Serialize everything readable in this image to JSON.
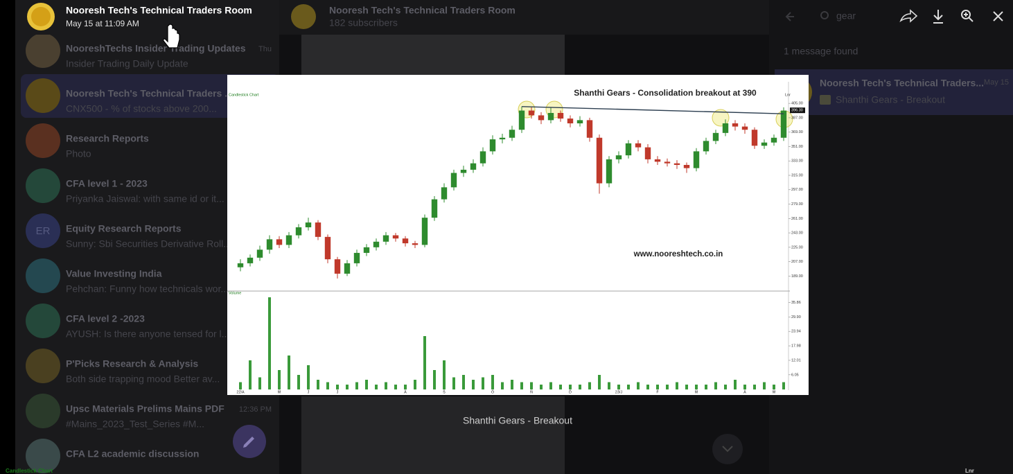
{
  "viewer": {
    "title": "Nooresh Tech's Technical Traders Room",
    "date": "May 15 at 11:09 AM",
    "caption": "Shanthi Gears - Breakout"
  },
  "chat_list": [
    {
      "name": "NooreshTechs Insider Trading Updates",
      "preview": "Insider Trading Daily Update",
      "time": "Thu"
    },
    {
      "name": "Nooresh Tech's Technical Traders ...",
      "preview": "CNX500 - % of stocks above 200...",
      "selected": true
    },
    {
      "name": "Research Reports",
      "preview": "Photo"
    },
    {
      "name": "CFA level 1 - 2023",
      "preview": "Priyanka Jaiswal: with same id or it..."
    },
    {
      "name": "Equity Research Reports",
      "preview": "Sunny: Sbi Securities Derivative Roll...",
      "initials": "ER"
    },
    {
      "name": "Value Investing India",
      "preview": "Pehchan: Funny how technicals wor..."
    },
    {
      "name": "CFA level 2 -2023",
      "preview": "AYUSH: Is there anyone tensed for l..."
    },
    {
      "name": "P'Picks Research & Analysis",
      "preview": "Both side trapping mood Better av..."
    },
    {
      "name": "Upsc Materials Prelims Mains PDF",
      "preview": "#Mains_2023_Test_Series #M...",
      "time": "12:36 PM"
    },
    {
      "name": "CFA L2 academic discussion",
      "preview": ""
    }
  ],
  "chat_header": {
    "title": "Nooresh Tech's Technical Traders Room",
    "subtitle": "182 subscribers"
  },
  "search": {
    "query": "gear",
    "status": "1 message found",
    "result": {
      "name": "Nooresh Tech's Technical Traders...",
      "date": "May 15",
      "preview": "Shanthi Gears - Breakout"
    }
  },
  "chart_data": {
    "type": "candlestick",
    "label": "Candlestick Chart",
    "title": "Shanthi Gears - Consolidation breakout at 390",
    "annotation": "www.nooreshtech.co.in",
    "scale_label": "Lnr",
    "up_color": "#2e8b2e",
    "down_color": "#c0392b",
    "xlim": [
      -0.5,
      56.5
    ],
    "xticks": [
      {
        "value": 0,
        "label": "22/A"
      },
      {
        "value": 4,
        "label": "M"
      },
      {
        "value": 7,
        "label": "J"
      },
      {
        "value": 10,
        "label": "J"
      },
      {
        "value": 17,
        "label": "A"
      },
      {
        "value": 21,
        "label": "S"
      },
      {
        "value": 26,
        "label": "O"
      },
      {
        "value": 30,
        "label": "N"
      },
      {
        "value": 34,
        "label": "D"
      },
      {
        "value": 39,
        "label": "23/J"
      },
      {
        "value": 43,
        "label": "F"
      },
      {
        "value": 47,
        "label": "M"
      },
      {
        "value": 52,
        "label": "A"
      },
      {
        "value": 55,
        "label": "M"
      }
    ],
    "ylim": [
      172,
      432
    ],
    "yticks": [
      {
        "value": 405,
        "label": "405.00"
      },
      {
        "value": 387,
        "label": "387.00"
      },
      {
        "value": 369,
        "label": "369.00"
      },
      {
        "value": 351,
        "label": "351.00"
      },
      {
        "value": 333,
        "label": "333.00"
      },
      {
        "value": 315,
        "label": "315.00"
      },
      {
        "value": 297,
        "label": "297.00"
      },
      {
        "value": 279,
        "label": "279.00"
      },
      {
        "value": 261,
        "label": "261.00"
      },
      {
        "value": 243,
        "label": "243.00"
      },
      {
        "value": 225,
        "label": "225.00"
      },
      {
        "value": 207,
        "label": "207.00"
      },
      {
        "value": 189,
        "label": "189.00"
      }
    ],
    "last_price": {
      "value": 396.3,
      "label": "396.30"
    },
    "trendline": {
      "start": [
        29,
        401
      ],
      "end": [
        56,
        392
      ]
    },
    "ohlc": [
      [
        200,
        210,
        195,
        205
      ],
      [
        205,
        216,
        201,
        212
      ],
      [
        212,
        227,
        208,
        222
      ],
      [
        222,
        240,
        217,
        235
      ],
      [
        235,
        239,
        224,
        228
      ],
      [
        228,
        244,
        224,
        240
      ],
      [
        240,
        254,
        236,
        250
      ],
      [
        250,
        262,
        246,
        256
      ],
      [
        256,
        259,
        234,
        238
      ],
      [
        238,
        241,
        205,
        210
      ],
      [
        210,
        213,
        186,
        192
      ],
      [
        192,
        209,
        189,
        205
      ],
      [
        205,
        222,
        201,
        218
      ],
      [
        218,
        229,
        214,
        225
      ],
      [
        225,
        236,
        221,
        232
      ],
      [
        232,
        244,
        228,
        240
      ],
      [
        240,
        243,
        232,
        236
      ],
      [
        236,
        239,
        226,
        230
      ],
      [
        230,
        233,
        224,
        228
      ],
      [
        228,
        266,
        225,
        262
      ],
      [
        262,
        289,
        258,
        285
      ],
      [
        285,
        305,
        281,
        300
      ],
      [
        300,
        322,
        296,
        318
      ],
      [
        318,
        327,
        313,
        322
      ],
      [
        322,
        335,
        318,
        330
      ],
      [
        330,
        350,
        326,
        345
      ],
      [
        345,
        365,
        341,
        360
      ],
      [
        360,
        367,
        355,
        362
      ],
      [
        362,
        377,
        358,
        372
      ],
      [
        372,
        401,
        368,
        396
      ],
      [
        396,
        400,
        386,
        390
      ],
      [
        390,
        394,
        379,
        384
      ],
      [
        384,
        400,
        380,
        393
      ],
      [
        393,
        396,
        382,
        386
      ],
      [
        386,
        390,
        375,
        380
      ],
      [
        380,
        389,
        376,
        384
      ],
      [
        384,
        387,
        357,
        362
      ],
      [
        362,
        366,
        292,
        305
      ],
      [
        305,
        339,
        300,
        335
      ],
      [
        335,
        345,
        330,
        340
      ],
      [
        340,
        359,
        336,
        355
      ],
      [
        355,
        359,
        345,
        350
      ],
      [
        350,
        354,
        330,
        335
      ],
      [
        335,
        339,
        328,
        332
      ],
      [
        332,
        336,
        326,
        330
      ],
      [
        330,
        334,
        323,
        328
      ],
      [
        328,
        331,
        318,
        324
      ],
      [
        324,
        349,
        320,
        345
      ],
      [
        345,
        362,
        341,
        358
      ],
      [
        358,
        372,
        354,
        368
      ],
      [
        368,
        385,
        364,
        380
      ],
      [
        380,
        384,
        371,
        376
      ],
      [
        376,
        380,
        367,
        372
      ],
      [
        372,
        375,
        348,
        352
      ],
      [
        352,
        360,
        348,
        356
      ],
      [
        356,
        366,
        352,
        362
      ],
      [
        362,
        400,
        358,
        396
      ]
    ],
    "volume": {
      "name": "Volume",
      "color": "#3a9a3a",
      "ylim": [
        0,
        40
      ],
      "yticks": [
        35.86,
        {
          "value": 29.9,
          "label": "29.90"
        },
        23.94,
        17.98,
        12.01,
        6.05
      ],
      "values": [
        3,
        12,
        5,
        38,
        8,
        14,
        6,
        10,
        4,
        3,
        2,
        2,
        3,
        4,
        2,
        3,
        2,
        2,
        4,
        22,
        8,
        12,
        5,
        6,
        4,
        5,
        6,
        3,
        4,
        3,
        3,
        2,
        3,
        2,
        2,
        2,
        3,
        6,
        3,
        2,
        2,
        3,
        2,
        2,
        2,
        3,
        2,
        2,
        2,
        3,
        2,
        4,
        2,
        2,
        3,
        2,
        3
      ]
    }
  },
  "footer": {
    "left": "Candlestick Chart",
    "right": "Lnr"
  }
}
